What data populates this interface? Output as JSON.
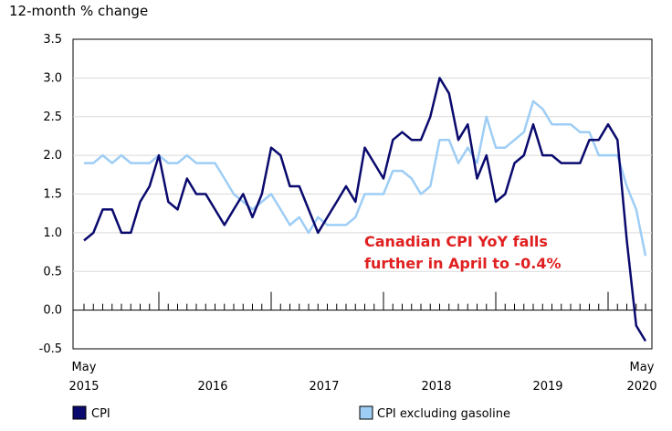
{
  "chart_data": {
    "type": "line",
    "ylabel": "12-month % change",
    "ylim": [
      -0.5,
      3.5
    ],
    "yticks": [
      -0.5,
      0.0,
      0.5,
      1.0,
      1.5,
      2.0,
      2.5,
      3.0,
      3.5
    ],
    "ytick_labels": [
      "-0.5",
      "0.0",
      "0.5",
      "1.0",
      "1.5",
      "2.0",
      "2.5",
      "3.0",
      "3.5"
    ],
    "x_start": "May 2015",
    "x_end": "May 2020",
    "x_major_labels": [
      {
        "month_index": 0,
        "label": "2015",
        "sublabel": "May"
      },
      {
        "month_index": 14,
        "label": "2016",
        "sublabel": ""
      },
      {
        "month_index": 26,
        "label": "2017",
        "sublabel": ""
      },
      {
        "month_index": 38,
        "label": "2018",
        "sublabel": ""
      },
      {
        "month_index": 50,
        "label": "2019",
        "sublabel": ""
      },
      {
        "month_index": 60,
        "label": "2020",
        "sublabel": "May"
      }
    ],
    "annotation": "Canadian CPI YoY falls further in April to -0.4%",
    "annotation_lines": [
      "Canadian CPI YoY falls",
      "further in April to -0.4%"
    ],
    "annotation_color": "#e02020",
    "series": [
      {
        "name": "CPI",
        "color": "#0a0a6e",
        "values": [
          0.9,
          1.0,
          1.3,
          1.3,
          1.0,
          1.0,
          1.4,
          1.6,
          2.0,
          1.4,
          1.3,
          1.7,
          1.5,
          1.5,
          1.3,
          1.1,
          1.3,
          1.5,
          1.2,
          1.5,
          2.1,
          2.0,
          1.6,
          1.6,
          1.3,
          1.0,
          1.2,
          1.4,
          1.6,
          1.4,
          2.1,
          1.9,
          1.7,
          2.2,
          2.3,
          2.2,
          2.2,
          2.5,
          3.0,
          2.8,
          2.2,
          2.4,
          1.7,
          2.0,
          1.4,
          1.5,
          1.9,
          2.0,
          2.4,
          2.0,
          2.0,
          1.9,
          1.9,
          1.9,
          2.2,
          2.2,
          2.4,
          2.2,
          0.9,
          -0.2,
          -0.4
        ]
      },
      {
        "name": "CPI excluding gasoline",
        "color": "#9ecdf5",
        "values": [
          1.9,
          1.9,
          2.0,
          1.9,
          2.0,
          1.9,
          1.9,
          1.9,
          2.0,
          1.9,
          1.9,
          2.0,
          1.9,
          1.9,
          1.9,
          1.7,
          1.5,
          1.4,
          1.3,
          1.4,
          1.5,
          1.3,
          1.1,
          1.2,
          1.0,
          1.2,
          1.1,
          1.1,
          1.1,
          1.2,
          1.5,
          1.5,
          1.5,
          1.8,
          1.8,
          1.7,
          1.5,
          1.6,
          2.2,
          2.2,
          1.9,
          2.1,
          1.9,
          2.5,
          2.1,
          2.1,
          2.2,
          2.3,
          2.7,
          2.6,
          2.4,
          2.4,
          2.4,
          2.3,
          2.3,
          2.0,
          2.0,
          2.0,
          1.6,
          1.3,
          0.7
        ]
      }
    ],
    "legend": [
      "CPI",
      "CPI excluding gasoline"
    ]
  }
}
